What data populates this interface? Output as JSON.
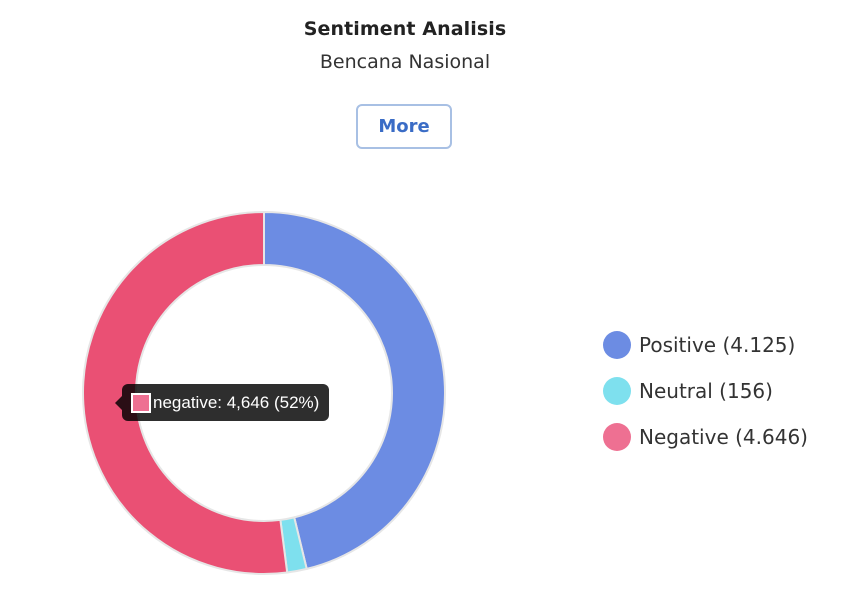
{
  "header": {
    "title": "Sentiment Analisis",
    "subtitle": "Bencana Nasional",
    "more_label": "More"
  },
  "tooltip": {
    "text": "negative: 4,646 (52%)",
    "color": "#ee7092"
  },
  "chart_data": {
    "type": "doughnut",
    "title": "Sentiment Analisis",
    "subtitle": "Bencana Nasional",
    "legend_position": "right",
    "start": "top",
    "direction": "clockwise",
    "slices": [
      {
        "name": "positive",
        "legend": "Positive (4.125)",
        "value": 4125,
        "color": "#6c8ce3"
      },
      {
        "name": "neutral",
        "legend": "Neutral (156)",
        "value": 156,
        "color": "#7ee0ee"
      },
      {
        "name": "negative",
        "legend": "Negative (4.646)",
        "value": 4646,
        "color": "#ea5074"
      }
    ],
    "legend_colors": [
      "#6c8ce3",
      "#7ee0ee",
      "#ee7092"
    ]
  }
}
